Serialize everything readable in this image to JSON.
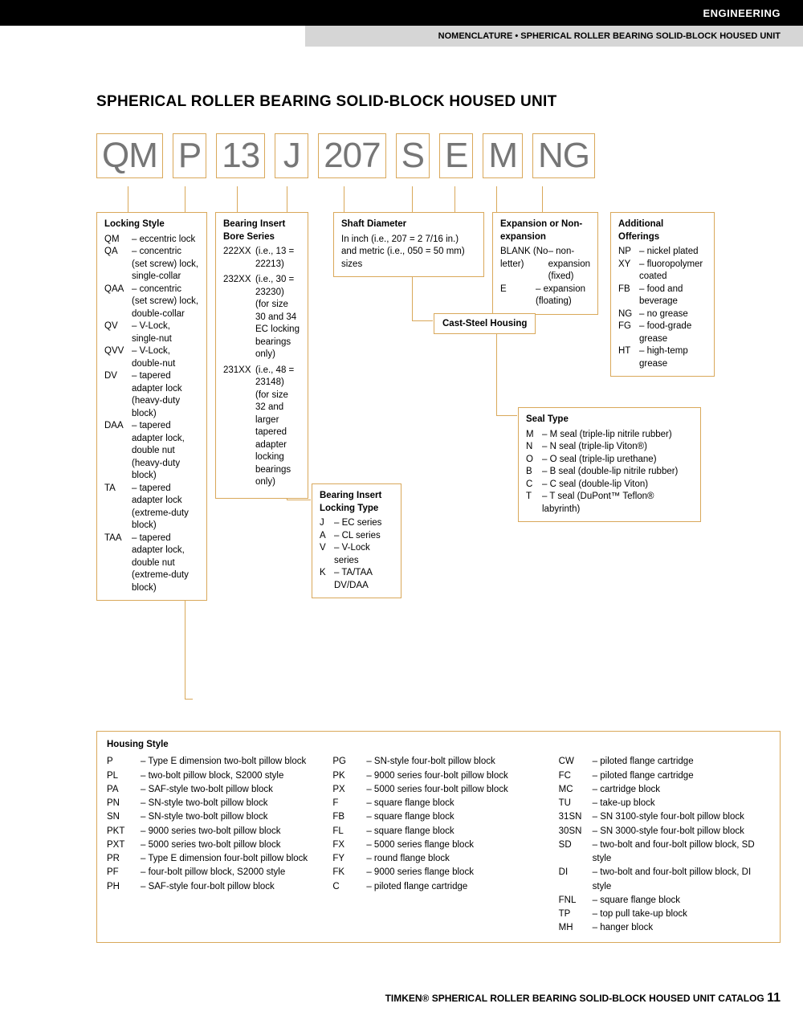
{
  "header": {
    "category": "ENGINEERING",
    "subtitle": "NOMENCLATURE • SPHERICAL ROLLER BEARING SOLID-BLOCK HOUSED UNIT"
  },
  "title": "SPHERICAL ROLLER BEARING SOLID-BLOCK HOUSED UNIT",
  "codes": [
    "QM",
    "P",
    "13",
    "J",
    "207",
    "S",
    "E",
    "M",
    "NG"
  ],
  "locking_style": {
    "title": "Locking Style",
    "items": [
      [
        "QM",
        "– eccentric lock"
      ],
      [
        "QA",
        "– concentric (set screw) lock, single-collar"
      ],
      [
        "QAA",
        "– concentric (set screw) lock, double-collar"
      ],
      [
        "QV",
        "– V-Lock, single-nut"
      ],
      [
        "QVV",
        "– V-Lock, double-nut"
      ],
      [
        "DV",
        "– tapered adapter lock (heavy-duty block)"
      ],
      [
        "DAA",
        "– tapered adapter lock, double nut (heavy-duty block)"
      ],
      [
        "TA",
        "– tapered adapter lock (extreme-duty block)"
      ],
      [
        "TAA",
        "– tapered adapter lock, double nut (extreme-duty block)"
      ]
    ]
  },
  "bore_series": {
    "title": "Bearing Insert Bore Series",
    "items": [
      [
        "222XX",
        "(i.e., 13 = 22213)"
      ],
      [
        "232XX",
        "(i.e., 30 = 23230) (for size 30 and 34 EC locking bearings only)"
      ],
      [
        "231XX",
        "(i.e., 48 = 23148) (for size 32 and larger tapered adapter locking bearings only)"
      ]
    ]
  },
  "locking_type": {
    "title": "Bearing Insert Locking Type",
    "items": [
      [
        "J",
        "– EC series"
      ],
      [
        "A",
        "– CL series"
      ],
      [
        "V",
        "– V-Lock series"
      ],
      [
        "K",
        "– TA/TAA DV/DAA"
      ]
    ]
  },
  "shaft_diameter": {
    "title": "Shaft Diameter",
    "text": "In inch (i.e., 207 = 2 7/16 in.) and metric (i.e., 050 = 50 mm) sizes"
  },
  "cast_housing": "Cast-Steel Housing",
  "expansion": {
    "title": "Expansion or Non-expansion",
    "items": [
      [
        "BLANK (No letter)",
        "– non-expansion (fixed)"
      ],
      [
        "E",
        "– expansion (floating)"
      ]
    ]
  },
  "seal_type": {
    "title": "Seal Type",
    "items": [
      [
        "M",
        "– M seal (triple-lip nitrile rubber)"
      ],
      [
        "N",
        "– N seal (triple-lip Viton®)"
      ],
      [
        "O",
        "– O seal (triple-lip urethane)"
      ],
      [
        "B",
        "– B seal (double-lip nitrile rubber)"
      ],
      [
        "C",
        "– C seal (double-lip Viton)"
      ],
      [
        "T",
        "– T seal (DuPont™ Teflon® labyrinth)"
      ]
    ]
  },
  "additional": {
    "title": "Additional Offerings",
    "items": [
      [
        "NP",
        "– nickel plated"
      ],
      [
        "XY",
        "– fluoropolymer coated"
      ],
      [
        "FB",
        "– food and beverage"
      ],
      [
        "NG",
        "– no grease"
      ],
      [
        "FG",
        "– food-grade grease"
      ],
      [
        "HT",
        "– high-temp grease"
      ]
    ]
  },
  "housing_style": {
    "title": "Housing Style",
    "cols": [
      [
        [
          "P",
          "– Type E dimension two-bolt pillow block"
        ],
        [
          "PL",
          "– two-bolt pillow block, S2000 style"
        ],
        [
          "PA",
          "– SAF-style two-bolt pillow block"
        ],
        [
          "PN",
          "– SN-style two-bolt pillow block"
        ],
        [
          "SN",
          "– SN-style two-bolt pillow block"
        ],
        [
          "PKT",
          "– 9000 series two-bolt pillow block"
        ],
        [
          "PXT",
          "– 5000 series two-bolt pillow block"
        ],
        [
          "PR",
          "– Type E dimension four-bolt pillow block"
        ],
        [
          "PF",
          "– four-bolt pillow block, S2000 style"
        ],
        [
          "PH",
          "– SAF-style four-bolt pillow block"
        ]
      ],
      [
        [
          "PG",
          "– SN-style four-bolt pillow block"
        ],
        [
          "PK",
          "– 9000 series four-bolt pillow block"
        ],
        [
          "PX",
          "– 5000 series four-bolt pillow block"
        ],
        [
          "F",
          "– square flange block"
        ],
        [
          "FB",
          "– square flange block"
        ],
        [
          "FL",
          "– square flange block"
        ],
        [
          "FX",
          "– 5000 series flange block"
        ],
        [
          "FY",
          "– round flange block"
        ],
        [
          "FK",
          "– 9000 series flange block"
        ],
        [
          "C",
          "– piloted flange cartridge"
        ]
      ],
      [
        [
          "CW",
          "– piloted flange cartridge"
        ],
        [
          "FC",
          "– piloted flange cartridge"
        ],
        [
          "MC",
          "– cartridge block"
        ],
        [
          "TU",
          "– take-up block"
        ],
        [
          "31SN",
          "– SN 3100-style four-bolt pillow block"
        ],
        [
          "30SN",
          "– SN 3000-style four-bolt pillow block"
        ],
        [
          "SD",
          "– two-bolt and four-bolt pillow block, SD style"
        ],
        [
          "DI",
          "– two-bolt and four-bolt pillow block, DI style"
        ],
        [
          "FNL",
          "– square flange block"
        ],
        [
          "TP",
          "– top pull take-up block"
        ],
        [
          "MH",
          "– hanger block"
        ]
      ]
    ]
  },
  "footer": {
    "text": "TIMKEN® SPHERICAL ROLLER BEARING SOLID-BLOCK HOUSED UNIT CATALOG",
    "page": "11"
  },
  "colors": {
    "border": "#d9a85a",
    "codetext": "#767676"
  }
}
